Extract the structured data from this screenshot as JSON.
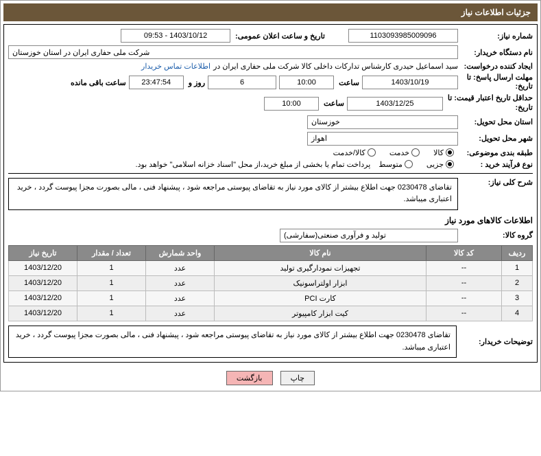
{
  "header": {
    "title": "جزئیات اطلاعات نیاز"
  },
  "fields": {
    "need_no_label": "شماره نیاز:",
    "need_no": "1103093985009096",
    "announce_label": "تاریخ و ساعت اعلان عمومی:",
    "announce_val": "1403/10/12 - 09:53",
    "buyer_org_label": "نام دستگاه خریدار:",
    "buyer_org": "شرکت ملی حفاری ایران در استان خوزستان",
    "requester_label": "ایجاد کننده درخواست:",
    "requester": "سید اسماعیل حیدری کارشناس تدارکات داخلی کالا شرکت ملی حفاری ایران در",
    "contact_link": "اطلاعات تماس خریدار",
    "deadline_label1": "مهلت ارسال پاسخ: تا",
    "deadline_label2": "تاریخ:",
    "deadline_date": "1403/10/19",
    "clock_label": "ساعت",
    "deadline_time": "10:00",
    "days": "6",
    "days_label": "روز و",
    "countdown": "23:47:54",
    "remaining_label": "ساعت باقی مانده",
    "validity_label1": "حداقل تاریخ اعتبار قیمت: تا",
    "validity_label2": "تاریخ:",
    "validity_date": "1403/12/25",
    "validity_time": "10:00",
    "province_label": "استان محل تحویل:",
    "province": "خوزستان",
    "city_label": "شهر محل تحویل:",
    "city": "اهواز",
    "subject_class_label": "طبقه بندی موضوعی:",
    "opt_kala": "کالا",
    "opt_khadamat": "خدمت",
    "opt_kala_khadamat": "کالا/خدمت",
    "purchase_type_label": "نوع فرآیند خرید :",
    "opt_jozi": "جزیی",
    "opt_motavaset": "متوسط",
    "purchase_note": "پرداخت تمام یا بخشی از مبلغ خرید،از محل \"اسناد خزانه اسلامی\" خواهد بود.",
    "brief_label": "شرح کلی نیاز:",
    "brief_text": "تقاضای 0230478 جهت اطلاع بیشتر از کالای مورد نیاز به تقاضای پیوستی مراجعه شود ، پیشنهاد فنی ، مالی بصورت مجزا پیوست گردد ، خرید اعتباری میباشد.",
    "items_title": "اطلاعات کالاهای مورد نیاز",
    "group_label": "گروه کالا:",
    "group_val": "تولید و فرآوری صنعتی(سفارشی)",
    "buyer_notes_label": "توضیحات خریدار:",
    "buyer_notes_text": "تقاضای 0230478 جهت اطلاع بیشتر از کالای مورد نیاز به تقاضای پیوستی مراجعه شود ، پیشنهاد فنی ، مالی بصورت مجزا پیوست گردد ، خرید اعتباری میباشد."
  },
  "table": {
    "headers": {
      "row": "ردیف",
      "code": "کد کالا",
      "name": "نام کالا",
      "unit": "واحد شمارش",
      "qty": "تعداد / مقدار",
      "date": "تاریخ نیاز"
    },
    "rows": [
      {
        "n": "1",
        "code": "--",
        "name": "تجهیزات نمودارگیری تولید",
        "unit": "عدد",
        "qty": "1",
        "date": "1403/12/20"
      },
      {
        "n": "2",
        "code": "--",
        "name": "ابزار اولتراسونیک",
        "unit": "عدد",
        "qty": "1",
        "date": "1403/12/20"
      },
      {
        "n": "3",
        "code": "--",
        "name": "کارت PCI",
        "unit": "عدد",
        "qty": "1",
        "date": "1403/12/20"
      },
      {
        "n": "4",
        "code": "--",
        "name": "کیت ابزار کامپیوتر",
        "unit": "عدد",
        "qty": "1",
        "date": "1403/12/20"
      }
    ]
  },
  "buttons": {
    "print": "چاپ",
    "back": "بازگشت"
  }
}
